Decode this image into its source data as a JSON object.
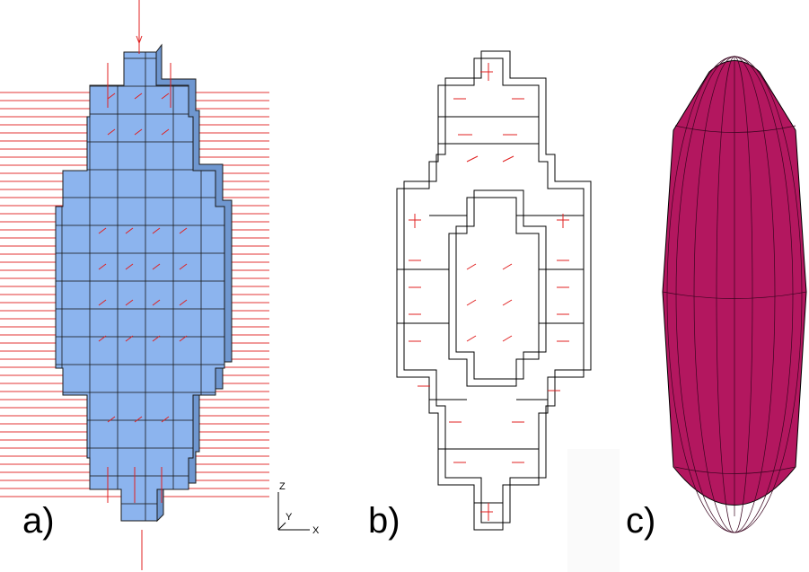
{
  "panels": [
    {
      "label": "a)"
    },
    {
      "label": "b)"
    },
    {
      "label": "c)"
    }
  ],
  "axes": {
    "z": "Z",
    "y": "Y",
    "x": "X"
  }
}
